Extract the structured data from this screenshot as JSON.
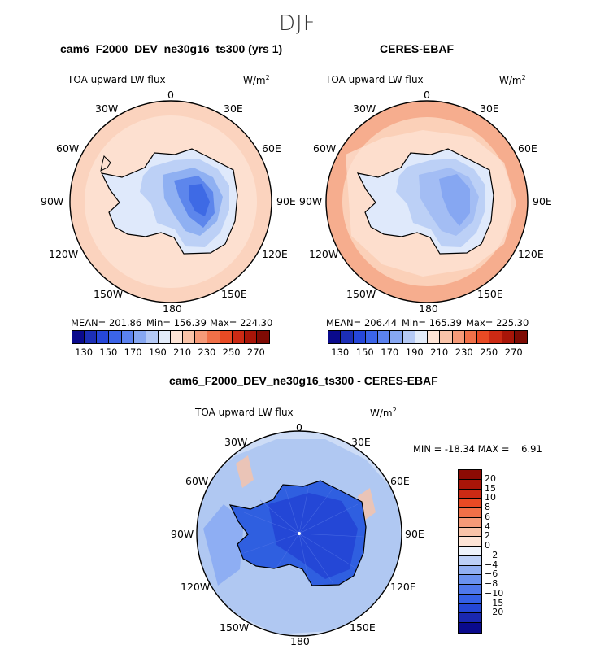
{
  "figure": {
    "title": "DJF"
  },
  "panels": [
    {
      "title": "cam6_F2000_DEV_ne30g16_ts300 (yrs 1)",
      "var": "TOA upward LW flux",
      "units": "W/m",
      "units_exp": "2",
      "stats": {
        "mean": "MEAN= 201.86",
        "min": "Min= 156.39",
        "max": "Max= 224.30"
      },
      "ocean": "#fde0d0",
      "rim": "#fbd3be",
      "ice_edge": "#dde9fb"
    },
    {
      "title": "CERES-EBAF",
      "var": "TOA upward LW flux",
      "units": "W/m",
      "units_exp": "2",
      "stats": {
        "mean": "MEAN= 206.44",
        "min": "Min= 165.39",
        "max": "Max= 225.30"
      },
      "ocean": "#fbd0b8",
      "rim": "#f6ad8e",
      "ice_edge": "#dde9fb"
    },
    {
      "title": "cam6_F2000_DEV_ne30g16_ts300 - CERES-EBAF",
      "var": "TOA upward LW flux",
      "units": "W/m",
      "units_exp": "2",
      "stats": {
        "minmax": "MIN = -18.34 MAX =    6.91"
      },
      "ocean": "#cddcf6",
      "rim": "#a9c3f1",
      "ice_edge": "#2f5fe0"
    }
  ],
  "lon_labels": [
    "0",
    "30E",
    "60E",
    "90E",
    "120E",
    "150E",
    "180",
    "150W",
    "120W",
    "90W",
    "60W",
    "30W"
  ],
  "colorbar_abs": {
    "colors": [
      "#0a0a8c",
      "#1c2fb6",
      "#2647d9",
      "#3b64e8",
      "#5b82ef",
      "#86a7f2",
      "#b4c9f5",
      "#e2ebf9",
      "#fde4d6",
      "#f9c3a8",
      "#f59a78",
      "#f07048",
      "#e84a24",
      "#cc2a14",
      "#a81508",
      "#7f0b04"
    ],
    "ticks": [
      "130",
      "150",
      "170",
      "190",
      "210",
      "230",
      "250",
      "270"
    ]
  },
  "colorbar_diff": {
    "colors": [
      "#0a0a8c",
      "#1a28b0",
      "#2447d6",
      "#3460e6",
      "#4f78ec",
      "#6b92f0",
      "#92b0f3",
      "#bdd0f7",
      "#eef3fb",
      "#fde4d6",
      "#f9c3a8",
      "#f59a78",
      "#f07048",
      "#e84a24",
      "#cc2a14",
      "#a81508",
      "#8c0b04"
    ],
    "ticks": [
      "20",
      "15",
      "10",
      "8",
      "6",
      "4",
      "2",
      "0",
      "−2",
      "−4",
      "−6",
      "−8",
      "−10",
      "−15",
      "−20"
    ]
  }
}
